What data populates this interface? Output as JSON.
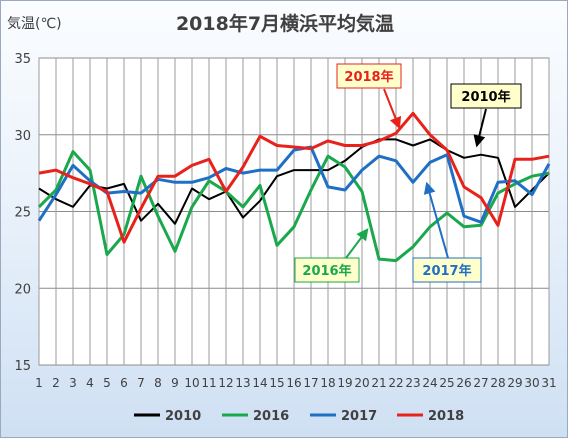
{
  "chart_data": {
    "type": "line",
    "title": "2018年7月横浜平均気温",
    "ylabel": "気温(℃)",
    "xlabel": "",
    "ylim": [
      15,
      35
    ],
    "yticks": [
      15,
      20,
      25,
      30,
      35
    ],
    "x": [
      1,
      2,
      3,
      4,
      5,
      6,
      7,
      8,
      9,
      10,
      11,
      12,
      13,
      14,
      15,
      16,
      17,
      18,
      19,
      20,
      21,
      22,
      23,
      24,
      25,
      26,
      27,
      28,
      29,
      30,
      31
    ],
    "grid": true,
    "legend_position": "bottom",
    "series": [
      {
        "name": "2010",
        "color": "#000000",
        "values": [
          26.5,
          25.8,
          25.3,
          26.7,
          26.5,
          26.8,
          24.4,
          25.5,
          24.2,
          26.5,
          25.8,
          26.3,
          24.6,
          25.7,
          27.3,
          27.7,
          27.7,
          27.7,
          28.3,
          29.2,
          29.7,
          29.7,
          29.3,
          29.7,
          29.0,
          28.5,
          28.7,
          28.5,
          25.3,
          26.4,
          27.5
        ]
      },
      {
        "name": "2016",
        "color": "#19a84c",
        "values": [
          25.3,
          26.4,
          28.9,
          27.7,
          22.2,
          23.5,
          27.3,
          24.7,
          22.4,
          25.3,
          27.0,
          26.3,
          25.3,
          26.7,
          22.8,
          24.0,
          26.4,
          28.6,
          27.9,
          26.3,
          21.9,
          21.8,
          22.7,
          24.0,
          24.9,
          24.0,
          24.1,
          26.2,
          26.8,
          27.3,
          27.5
        ]
      },
      {
        "name": "2017",
        "color": "#1f6fc5",
        "values": [
          24.4,
          26.1,
          28.0,
          27.0,
          26.2,
          26.3,
          26.2,
          27.1,
          26.9,
          26.9,
          27.2,
          27.8,
          27.5,
          27.7,
          27.7,
          29.0,
          29.2,
          26.6,
          26.4,
          27.7,
          28.6,
          28.3,
          26.9,
          28.2,
          28.7,
          24.7,
          24.3,
          26.9,
          27.0,
          26.1,
          28.1
        ]
      },
      {
        "name": "2018",
        "color": "#e8221b",
        "values": [
          27.5,
          27.7,
          27.2,
          26.8,
          26.3,
          23.0,
          25.2,
          27.3,
          27.3,
          28.0,
          28.4,
          26.3,
          27.9,
          29.9,
          29.3,
          29.2,
          29.1,
          29.6,
          29.3,
          29.3,
          29.6,
          30.1,
          31.4,
          30.0,
          29.0,
          26.6,
          25.9,
          24.1,
          28.4,
          28.4,
          28.6
        ]
      }
    ],
    "annotations": [
      {
        "text": "2018年",
        "series": "2018",
        "color": "#e8221b",
        "border": "#e8221b"
      },
      {
        "text": "2010年",
        "series": "2010",
        "color": "#000000",
        "border": "#000000"
      },
      {
        "text": "2016年",
        "series": "2016",
        "color": "#19a84c",
        "border": "#19a84c"
      },
      {
        "text": "2017年",
        "series": "2017",
        "color": "#1f6fc5",
        "border": "#1f6fc5"
      }
    ]
  }
}
